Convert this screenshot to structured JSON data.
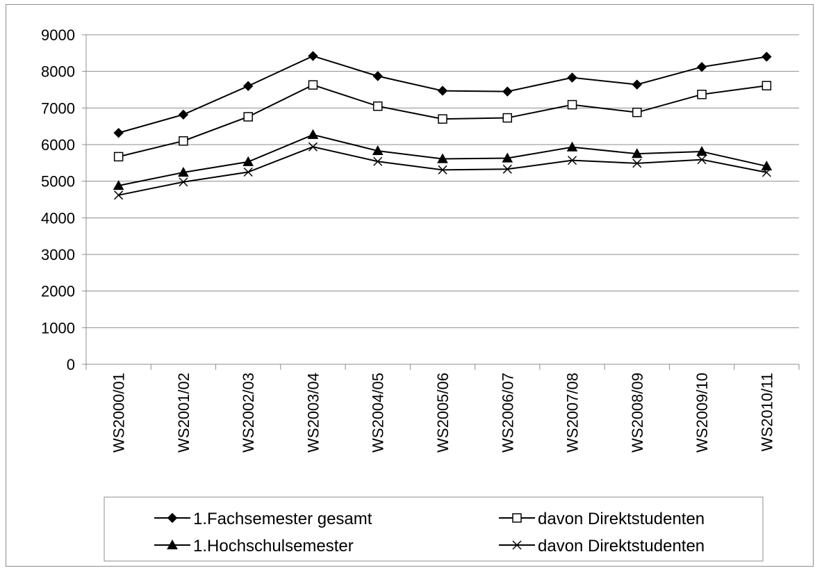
{
  "chart_data": {
    "type": "line",
    "categories": [
      "WS2000/01",
      "WS2001/02",
      "WS2002/03",
      "WS2003/04",
      "WS2004/05",
      "WS2005/06",
      "WS2006/07",
      "WS2007/08",
      "WS2008/09",
      "WS2009/10",
      "WS2010/11"
    ],
    "ylim": [
      0,
      9000
    ],
    "ytick_step": 1000,
    "grid": "horizontal",
    "legend_placement": "bottom",
    "series": [
      {
        "name": "1.Fachsemester gesamt",
        "marker": "diamond-filled",
        "values": [
          6320,
          6820,
          7600,
          8420,
          7870,
          7470,
          7450,
          7830,
          7640,
          8120,
          8400
        ]
      },
      {
        "name": "davon Direktstudenten",
        "marker": "square-open",
        "values": [
          5670,
          6100,
          6760,
          7630,
          7050,
          6700,
          6730,
          7090,
          6880,
          7370,
          7610
        ]
      },
      {
        "name": "1.Hochschulsemester",
        "marker": "triangle-filled",
        "values": [
          4880,
          5240,
          5530,
          6270,
          5830,
          5610,
          5630,
          5930,
          5750,
          5810,
          5410
        ]
      },
      {
        "name": "davon Direktstudenten",
        "marker": "x",
        "values": [
          4620,
          4980,
          5250,
          5940,
          5540,
          5310,
          5330,
          5570,
          5490,
          5590,
          5240
        ]
      }
    ]
  }
}
